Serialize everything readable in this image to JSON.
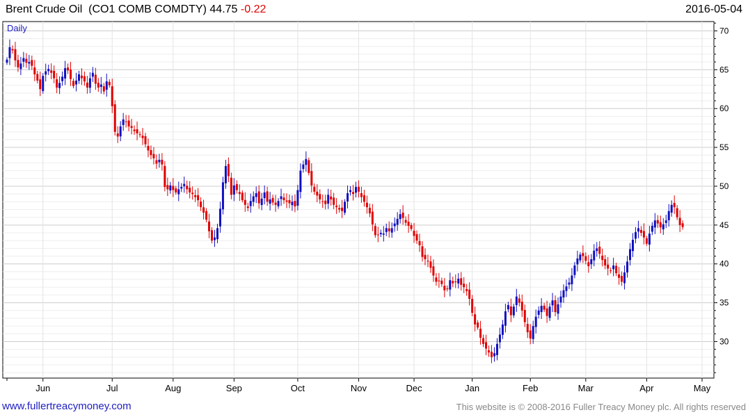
{
  "header": {
    "instrument": "Brent Crude Oil",
    "ticker": "(CO1 COMB COMDTY)",
    "last": "44.75",
    "change": "-0.22",
    "date": "2016-05-04"
  },
  "footer": {
    "site": "www.fullertreacymoney.com",
    "copyright": "This website is © 2008-2016 Fuller Treacy Money plc. All rights reserved"
  },
  "colors": {
    "up": "#1010c0",
    "down": "#e00000",
    "grid": "#dddddd",
    "frame": "#000000"
  },
  "chart_data": {
    "type": "candlestick",
    "period_label": "Daily",
    "y_ticks": [
      30,
      35,
      40,
      45,
      50,
      55,
      60,
      65,
      70
    ],
    "ylim": [
      25.3,
      71.2
    ],
    "x_labels": [
      "Jun",
      "Jul",
      "Aug",
      "Sep",
      "Oct",
      "Nov",
      "Dec",
      "Jan",
      "Feb",
      "Mar",
      "Apr",
      "May"
    ],
    "x_label_index": [
      13,
      38,
      60,
      82,
      105,
      127,
      147,
      168,
      189,
      209,
      231,
      251
    ],
    "grid": true,
    "close": [
      66.3,
      67.9,
      67.5,
      66.2,
      65.3,
      65.8,
      66.5,
      65.9,
      66.0,
      65.5,
      64.4,
      63.6,
      62.5,
      64.2,
      64.8,
      65.1,
      64.6,
      63.9,
      62.7,
      63.3,
      64.1,
      65.2,
      64.9,
      63.8,
      62.9,
      63.6,
      64.4,
      63.9,
      63.5,
      62.7,
      63.9,
      64.6,
      63.2,
      62.7,
      63.1,
      62.2,
      63.5,
      63.0,
      60.3,
      57.0,
      56.4,
      57.7,
      58.6,
      58.3,
      57.7,
      57.5,
      57.1,
      56.8,
      56.6,
      56.2,
      55.4,
      54.6,
      54.0,
      53.6,
      52.9,
      53.4,
      52.8,
      49.9,
      49.6,
      50.1,
      49.5,
      49.2,
      49.6,
      49.9,
      50.3,
      49.6,
      49.2,
      49.0,
      48.6,
      48.2,
      47.3,
      46.6,
      45.7,
      44.2,
      43.0,
      43.4,
      44.6,
      47.1,
      50.5,
      52.6,
      51.3,
      48.9,
      50.1,
      49.5,
      49.0,
      48.2,
      47.6,
      47.2,
      48.1,
      48.7,
      49.1,
      47.8,
      48.4,
      49.2,
      48.0,
      48.3,
      47.9,
      47.6,
      48.1,
      48.7,
      48.2,
      48.0,
      47.8,
      48.0,
      47.4,
      49.5,
      52.0,
      52.8,
      53.5,
      51.7,
      50.1,
      49.3,
      48.8,
      48.3,
      48.0,
      47.7,
      48.9,
      48.3,
      47.6,
      47.3,
      47.0,
      46.8,
      48.0,
      49.1,
      49.5,
      49.0,
      49.9,
      49.3,
      48.6,
      48.0,
      47.3,
      46.5,
      45.1,
      43.7,
      43.7,
      44.0,
      43.9,
      44.6,
      44.2,
      44.6,
      45.2,
      45.8,
      46.4,
      45.9,
      45.3,
      44.9,
      44.5,
      43.6,
      43.0,
      42.4,
      40.9,
      40.6,
      40.3,
      39.5,
      38.5,
      37.7,
      37.8,
      37.4,
      36.6,
      36.8,
      37.9,
      37.5,
      37.7,
      38.1,
      37.3,
      37.0,
      36.5,
      35.5,
      33.7,
      32.2,
      31.8,
      30.5,
      29.7,
      29.1,
      28.6,
      28.0,
      28.5,
      29.7,
      30.9,
      32.2,
      33.9,
      34.7,
      33.4,
      34.5,
      35.8,
      35.0,
      34.0,
      32.5,
      31.2,
      30.4,
      32.0,
      33.2,
      34.0,
      34.6,
      34.1,
      33.3,
      34.5,
      35.3,
      33.8,
      34.8,
      35.8,
      36.6,
      37.1,
      37.6,
      38.5,
      39.8,
      40.7,
      41.2,
      41.0,
      40.4,
      39.7,
      40.6,
      41.7,
      42.0,
      41.3,
      40.5,
      39.8,
      39.4,
      39.1,
      39.8,
      38.8,
      38.2,
      37.7,
      38.9,
      40.3,
      41.9,
      43.1,
      44.1,
      44.6,
      44.0,
      43.4,
      42.6,
      43.9,
      44.9,
      45.6,
      45.2,
      44.7,
      45.1,
      45.6,
      46.8,
      47.6,
      47.3,
      46.0,
      45.0,
      44.75
    ]
  }
}
